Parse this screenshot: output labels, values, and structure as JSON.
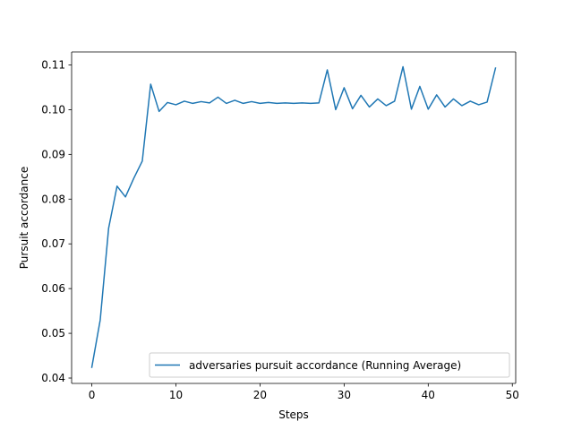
{
  "chart_data": {
    "type": "line",
    "title": "",
    "xlabel": "Steps",
    "ylabel": "Pursuit accordance",
    "xlim": [
      -2.4,
      50.4
    ],
    "ylim": [
      0.0388,
      0.1129
    ],
    "xticks": [
      0,
      10,
      20,
      30,
      40,
      50
    ],
    "yticks": [
      0.04,
      0.05,
      0.06,
      0.07,
      0.08,
      0.09,
      0.1,
      0.11
    ],
    "xtick_labels": [
      "0",
      "10",
      "20",
      "30",
      "40",
      "50"
    ],
    "ytick_labels": [
      "0.04",
      "0.05",
      "0.06",
      "0.07",
      "0.08",
      "0.09",
      "0.10",
      "0.11"
    ],
    "grid": false,
    "legend_position": "lower right",
    "series": [
      {
        "name": "adversaries pursuit accordance (Running Average)",
        "color": "#1f77b4",
        "x": [
          0,
          1,
          2,
          3,
          4,
          5,
          6,
          7,
          8,
          9,
          10,
          11,
          12,
          13,
          14,
          15,
          16,
          17,
          18,
          19,
          20,
          21,
          22,
          23,
          24,
          25,
          26,
          27,
          28,
          29,
          30,
          31,
          32,
          33,
          34,
          35,
          36,
          37,
          38,
          39,
          40,
          41,
          42,
          43,
          44,
          45,
          46,
          47,
          48
        ],
        "y": [
          0.0424,
          0.053,
          0.0735,
          0.0829,
          0.0805,
          0.0847,
          0.0885,
          0.1057,
          0.0996,
          0.1016,
          0.1011,
          0.1019,
          0.1014,
          0.1018,
          0.1015,
          0.1028,
          0.1014,
          0.1021,
          0.1014,
          0.1018,
          0.1014,
          0.1016,
          0.1014,
          0.1015,
          0.1014,
          0.1015,
          0.1014,
          0.1015,
          0.1089,
          0.1,
          0.1049,
          0.1002,
          0.1032,
          0.1006,
          0.1024,
          0.1009,
          0.1019,
          0.1096,
          0.1001,
          0.1052,
          0.1001,
          0.1033,
          0.1006,
          0.1024,
          0.1009,
          0.1019,
          0.1011,
          0.1017,
          0.1093
        ]
      }
    ]
  }
}
